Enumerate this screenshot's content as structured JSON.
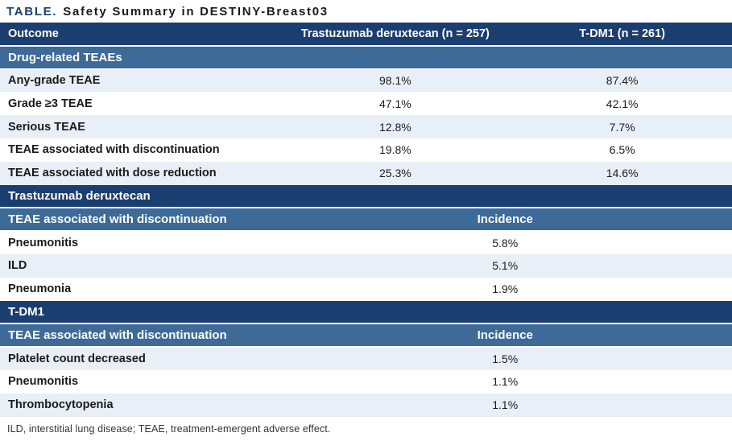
{
  "title": {
    "tag": "TABLE.",
    "text": "Safety Summary in DESTINY-Breast03"
  },
  "colors": {
    "navy": "#1b3e70",
    "steel": "#3d6a97",
    "shade": "#e9eff7",
    "ink": "#1a1a1a",
    "foot": "#333333"
  },
  "table": {
    "columns": [
      "Outcome",
      "Trastuzumab deruxtecan (n = 257)",
      "T-DM1 (n = 261)"
    ],
    "rows": [
      {
        "style": "section-blue",
        "name": "section-drug-related-teaes",
        "cells": [
          {
            "t": "Drug-related TEAEs",
            "span": 3,
            "align": "left"
          }
        ]
      },
      {
        "style": "shaded",
        "name": "row-any-grade-teae",
        "cells": [
          {
            "t": "Any-grade TEAE"
          },
          {
            "t": "98.1%"
          },
          {
            "t": "87.4%"
          }
        ]
      },
      {
        "style": "plain",
        "name": "row-grade-3-teae",
        "cells": [
          {
            "t": "Grade ≥3 TEAE"
          },
          {
            "t": "47.1%"
          },
          {
            "t": "42.1%"
          }
        ]
      },
      {
        "style": "shaded",
        "name": "row-serious-teae",
        "cells": [
          {
            "t": "Serious TEAE"
          },
          {
            "t": "12.8%"
          },
          {
            "t": "7.7%"
          }
        ]
      },
      {
        "style": "plain",
        "name": "row-teae-discontinuation",
        "cells": [
          {
            "t": "TEAE associated with discontinuation"
          },
          {
            "t": "19.8%"
          },
          {
            "t": "6.5%"
          }
        ]
      },
      {
        "style": "shaded",
        "name": "row-teae-dose-reduction",
        "cells": [
          {
            "t": "TEAE associated with dose reduction"
          },
          {
            "t": "25.3%"
          },
          {
            "t": "14.6%"
          }
        ]
      },
      {
        "style": "section-navy",
        "name": "section-trastuzumab-deruxtecan",
        "cells": [
          {
            "t": "Trastuzumab deruxtecan",
            "span": 3,
            "align": "left"
          }
        ]
      },
      {
        "style": "subheader",
        "name": "subheader-td-discontinuation",
        "cells": [
          {
            "t": "TEAE associated with discontinuation"
          },
          {
            "t": "Incidence",
            "span": 2
          }
        ]
      },
      {
        "style": "plain",
        "name": "row-pneumonitis-td",
        "cells": [
          {
            "t": "Pneumonitis"
          },
          {
            "t": "5.8%",
            "span": 2
          }
        ]
      },
      {
        "style": "shaded",
        "name": "row-ild",
        "cells": [
          {
            "t": "ILD"
          },
          {
            "t": "5.1%",
            "span": 2
          }
        ]
      },
      {
        "style": "plain",
        "name": "row-pneumonia",
        "cells": [
          {
            "t": "Pneumonia"
          },
          {
            "t": "1.9%",
            "span": 2
          }
        ]
      },
      {
        "style": "section-navy",
        "name": "section-t-dm1",
        "cells": [
          {
            "t": "T-DM1",
            "span": 3,
            "align": "left"
          }
        ]
      },
      {
        "style": "subheader",
        "name": "subheader-tdm1-discontinuation",
        "cells": [
          {
            "t": "TEAE associated with discontinuation"
          },
          {
            "t": "Incidence",
            "span": 2
          }
        ]
      },
      {
        "style": "shaded",
        "name": "row-platelet-count-decreased",
        "cells": [
          {
            "t": "Platelet count decreased"
          },
          {
            "t": "1.5%",
            "span": 2
          }
        ]
      },
      {
        "style": "plain",
        "name": "row-pneumonitis-tdm1",
        "cells": [
          {
            "t": "Pneumonitis"
          },
          {
            "t": "1.1%",
            "span": 2
          }
        ]
      },
      {
        "style": "shaded",
        "name": "row-thrombocytopenia",
        "cells": [
          {
            "t": "Thrombocytopenia"
          },
          {
            "t": "1.1%",
            "span": 2
          }
        ]
      }
    ]
  },
  "footnote": "ILD, interstitial lung disease; TEAE, treatment-emergent adverse effect."
}
